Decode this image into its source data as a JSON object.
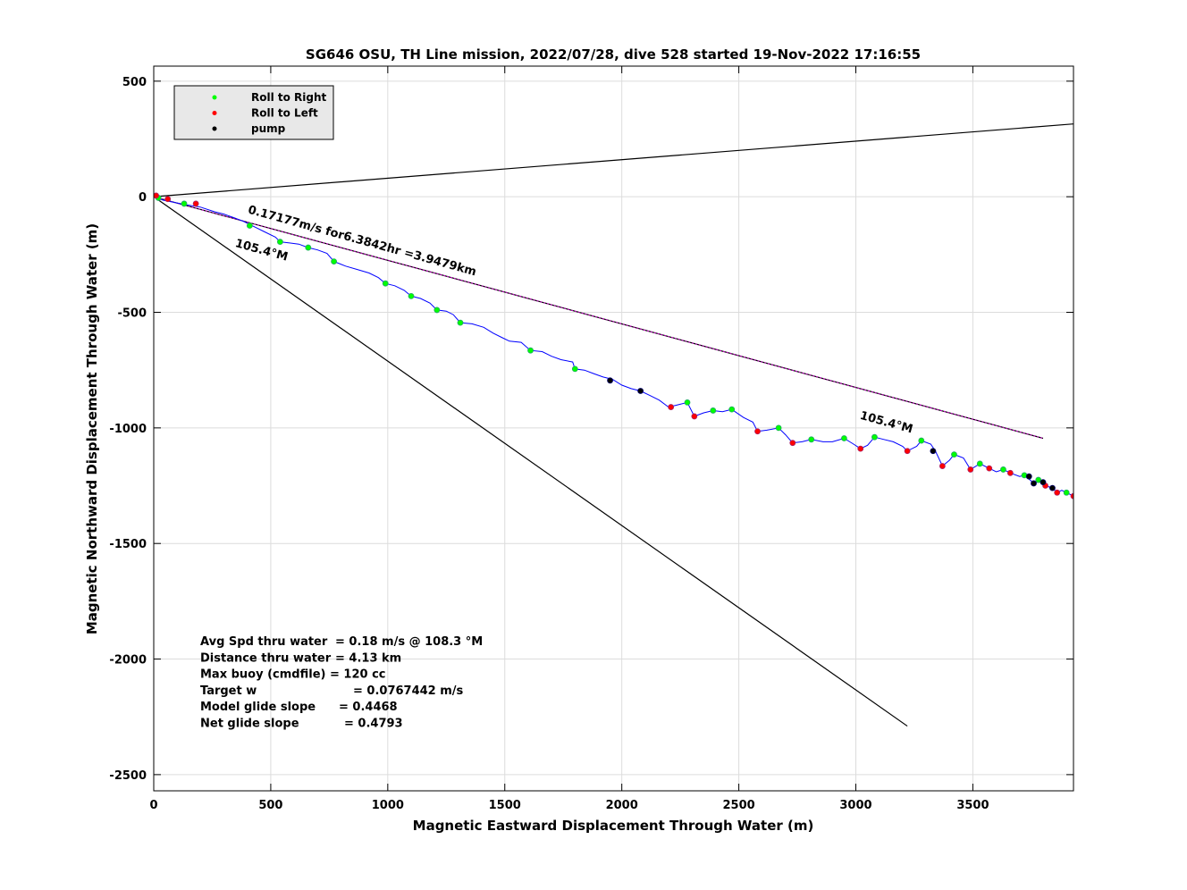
{
  "chart_data": {
    "type": "scatter",
    "title": "SG646 OSU, TH Line mission, 2022/07/28, dive 528 started 19-Nov-2022 17:16:55",
    "xlabel": "Magnetic Eastward Displacement Through Water (m)",
    "ylabel": "Magnetic Northward Displacement Through Water (m)",
    "xlim": [
      0,
      3930
    ],
    "ylim": [
      -2570,
      565
    ],
    "xticks": [
      0,
      500,
      1000,
      1500,
      2000,
      2500,
      3000,
      3500
    ],
    "yticks": [
      500,
      0,
      -500,
      -1000,
      -1500,
      -2000,
      -2500
    ],
    "grid": true,
    "legend_position": "top-left",
    "legend": [
      {
        "label": "Roll to Right",
        "color": "#00ff00"
      },
      {
        "label": "Roll to Left",
        "color": "#ff0000"
      },
      {
        "label": "pump",
        "color": "#000000"
      }
    ],
    "track": [
      [
        0,
        0
      ],
      [
        40,
        -15
      ],
      [
        90,
        -25
      ],
      [
        140,
        -35
      ],
      [
        200,
        -45
      ],
      [
        260,
        -65
      ],
      [
        300,
        -75
      ],
      [
        340,
        -90
      ],
      [
        380,
        -105
      ],
      [
        410,
        -120
      ],
      [
        440,
        -135
      ],
      [
        470,
        -150
      ],
      [
        520,
        -175
      ],
      [
        540,
        -195
      ],
      [
        580,
        -200
      ],
      [
        620,
        -205
      ],
      [
        660,
        -220
      ],
      [
        700,
        -230
      ],
      [
        740,
        -245
      ],
      [
        770,
        -280
      ],
      [
        820,
        -300
      ],
      [
        870,
        -315
      ],
      [
        920,
        -330
      ],
      [
        960,
        -350
      ],
      [
        990,
        -375
      ],
      [
        1030,
        -385
      ],
      [
        1070,
        -405
      ],
      [
        1100,
        -430
      ],
      [
        1140,
        -440
      ],
      [
        1180,
        -460
      ],
      [
        1210,
        -490
      ],
      [
        1250,
        -495
      ],
      [
        1280,
        -510
      ],
      [
        1310,
        -545
      ],
      [
        1360,
        -550
      ],
      [
        1410,
        -565
      ],
      [
        1450,
        -590
      ],
      [
        1490,
        -610
      ],
      [
        1520,
        -625
      ],
      [
        1570,
        -630
      ],
      [
        1610,
        -665
      ],
      [
        1660,
        -670
      ],
      [
        1700,
        -690
      ],
      [
        1740,
        -705
      ],
      [
        1790,
        -715
      ],
      [
        1800,
        -745
      ],
      [
        1840,
        -750
      ],
      [
        1880,
        -765
      ],
      [
        1920,
        -780
      ],
      [
        1960,
        -790
      ],
      [
        2000,
        -815
      ],
      [
        2040,
        -830
      ],
      [
        2080,
        -840
      ],
      [
        2120,
        -860
      ],
      [
        2160,
        -880
      ],
      [
        2200,
        -910
      ],
      [
        2240,
        -900
      ],
      [
        2280,
        -890
      ],
      [
        2310,
        -950
      ],
      [
        2350,
        -935
      ],
      [
        2390,
        -925
      ],
      [
        2430,
        -930
      ],
      [
        2470,
        -920
      ],
      [
        2520,
        -955
      ],
      [
        2560,
        -975
      ],
      [
        2580,
        -1015
      ],
      [
        2620,
        -1010
      ],
      [
        2670,
        -1000
      ],
      [
        2700,
        -1030
      ],
      [
        2730,
        -1065
      ],
      [
        2770,
        -1060
      ],
      [
        2810,
        -1050
      ],
      [
        2860,
        -1060
      ],
      [
        2900,
        -1060
      ],
      [
        2950,
        -1045
      ],
      [
        2990,
        -1070
      ],
      [
        3020,
        -1090
      ],
      [
        3050,
        -1075
      ],
      [
        3080,
        -1040
      ],
      [
        3120,
        -1050
      ],
      [
        3160,
        -1060
      ],
      [
        3200,
        -1080
      ],
      [
        3220,
        -1100
      ],
      [
        3260,
        -1080
      ],
      [
        3280,
        -1055
      ],
      [
        3320,
        -1070
      ],
      [
        3340,
        -1100
      ],
      [
        3370,
        -1165
      ],
      [
        3400,
        -1140
      ],
      [
        3420,
        -1115
      ],
      [
        3460,
        -1130
      ],
      [
        3490,
        -1180
      ],
      [
        3530,
        -1155
      ],
      [
        3570,
        -1175
      ],
      [
        3600,
        -1190
      ],
      [
        3630,
        -1180
      ],
      [
        3660,
        -1195
      ],
      [
        3700,
        -1210
      ],
      [
        3720,
        -1205
      ],
      [
        3750,
        -1230
      ],
      [
        3760,
        -1240
      ],
      [
        3790,
        -1230
      ],
      [
        3810,
        -1250
      ],
      [
        3840,
        -1260
      ],
      [
        3860,
        -1280
      ],
      [
        3880,
        -1270
      ],
      [
        3910,
        -1285
      ],
      [
        3930,
        -1295
      ]
    ],
    "roll_right": [
      [
        20,
        -5
      ],
      [
        130,
        -30
      ],
      [
        410,
        -125
      ],
      [
        540,
        -195
      ],
      [
        660,
        -220
      ],
      [
        770,
        -280
      ],
      [
        990,
        -375
      ],
      [
        1100,
        -430
      ],
      [
        1210,
        -490
      ],
      [
        1310,
        -545
      ],
      [
        1610,
        -665
      ],
      [
        1800,
        -745
      ],
      [
        2280,
        -890
      ],
      [
        2390,
        -925
      ],
      [
        2470,
        -920
      ],
      [
        2670,
        -1000
      ],
      [
        2810,
        -1050
      ],
      [
        2950,
        -1045
      ],
      [
        3080,
        -1040
      ],
      [
        3280,
        -1055
      ],
      [
        3420,
        -1115
      ],
      [
        3530,
        -1155
      ],
      [
        3630,
        -1180
      ],
      [
        3720,
        -1205
      ],
      [
        3780,
        -1225
      ],
      [
        3900,
        -1280
      ]
    ],
    "roll_left": [
      [
        10,
        5
      ],
      [
        60,
        -10
      ],
      [
        180,
        -30
      ],
      [
        2210,
        -910
      ],
      [
        2310,
        -950
      ],
      [
        2580,
        -1015
      ],
      [
        2730,
        -1065
      ],
      [
        3020,
        -1090
      ],
      [
        3220,
        -1100
      ],
      [
        3370,
        -1165
      ],
      [
        3490,
        -1180
      ],
      [
        3570,
        -1175
      ],
      [
        3660,
        -1195
      ],
      [
        3810,
        -1250
      ],
      [
        3860,
        -1280
      ],
      [
        3930,
        -1295
      ]
    ],
    "pump": [
      [
        1950,
        -795
      ],
      [
        2080,
        -840
      ],
      [
        3330,
        -1100
      ],
      [
        3740,
        -1210
      ],
      [
        3760,
        -1240
      ],
      [
        3800,
        -1235
      ],
      [
        3840,
        -1260
      ]
    ],
    "lines": [
      {
        "name": "reference-upper",
        "color": "#000000",
        "x": [
          0,
          3930
        ],
        "y": [
          0,
          315
        ]
      },
      {
        "name": "reference-lower",
        "color": "#000000",
        "x": [
          0,
          3220
        ],
        "y": [
          0,
          -2290
        ]
      },
      {
        "name": "current-vector",
        "color": "#000000",
        "x": [
          0,
          3800
        ],
        "y": [
          0,
          -1045
        ]
      },
      {
        "name": "current-vector-overlay",
        "color": "#cc00cc",
        "x": [
          0,
          3800
        ],
        "y": [
          0,
          -1045
        ]
      }
    ],
    "annotations": [
      {
        "text": "0.17177m/s for6.3842hr =3.9479km",
        "x": 400,
        "y": -70,
        "angle": 15.4
      },
      {
        "text": "105.4°M",
        "x": 345,
        "y": -215,
        "angle": 15.4
      },
      {
        "text": "105.4°M",
        "x": 3015,
        "y": -960,
        "angle": 15.4
      }
    ],
    "stats": [
      {
        "label": "Avg Spd thru water",
        "value": "=  0.18 m/s @ 108.3 °M"
      },
      {
        "label": "Distance thru water",
        "value": "=  4.13 km"
      },
      {
        "label": "Max buoy (cmdfile)",
        "value": " = 120 cc"
      },
      {
        "label": "Target w",
        "value": "= 0.0767442 m/s"
      },
      {
        "label": "Model glide slope",
        "value": "= 0.4468"
      },
      {
        "label": "Net glide slope",
        "value": "= 0.4793"
      }
    ]
  }
}
